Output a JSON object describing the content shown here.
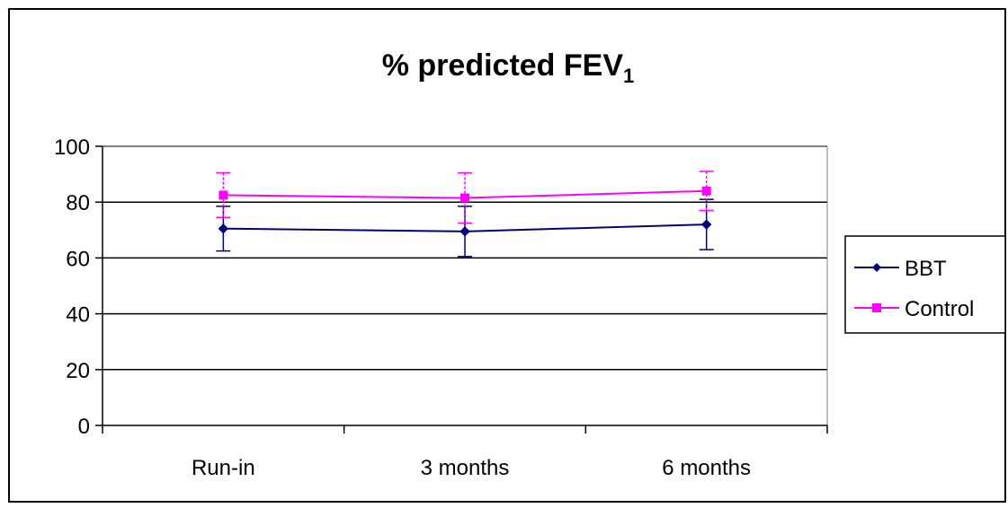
{
  "chart_data": {
    "type": "line",
    "title": "% predicted FEV",
    "title_subscript": "1",
    "xlabel": "",
    "ylabel": "",
    "categories": [
      "Run-in",
      "3 months",
      "6 months"
    ],
    "ylim": [
      0,
      100
    ],
    "yticks": [
      0,
      20,
      40,
      60,
      80,
      100
    ],
    "grid": true,
    "legend_position": "right",
    "series": [
      {
        "name": "BBT",
        "color": "#000080",
        "marker": "diamond",
        "values": [
          70.5,
          69.5,
          72
        ],
        "error": [
          8,
          9,
          9
        ]
      },
      {
        "name": "Control",
        "color": "#ff00ff",
        "marker": "square",
        "values": [
          82.5,
          81.5,
          84
        ],
        "error": [
          8,
          9,
          7
        ]
      }
    ]
  }
}
